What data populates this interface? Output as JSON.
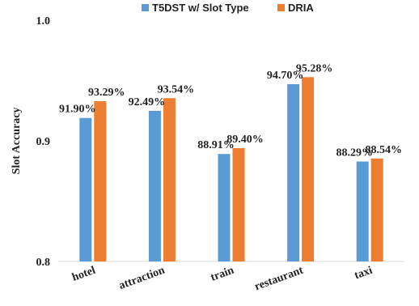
{
  "chart_data": {
    "type": "bar",
    "categories": [
      "hotel",
      "attraction",
      "train",
      "restaurant",
      "taxi"
    ],
    "series": [
      {
        "name": "T5DST w/ Slot Type",
        "color": "#5B9BD5",
        "values": [
          0.919,
          0.9249,
          0.8891,
          0.947,
          0.8829
        ],
        "labels": [
          "91.90%",
          "92.49%",
          "88.91%",
          "94.70%",
          "88.29%"
        ]
      },
      {
        "name": "DRIA",
        "color": "#ED7D31",
        "values": [
          0.9329,
          0.9354,
          0.894,
          0.9528,
          0.8854
        ],
        "labels": [
          "93.29%",
          "93.54%",
          "89.40%",
          "95.28%",
          "88.54%"
        ]
      }
    ],
    "title": "",
    "xlabel": "",
    "ylabel": "Slot Accuracy",
    "ylim": [
      0.8,
      1.0
    ],
    "yticks": [
      0.8,
      0.9,
      1.0
    ],
    "ytick_labels": [
      "0.8",
      "0.9",
      "1.0"
    ],
    "grid": false,
    "legend_position": "top"
  }
}
